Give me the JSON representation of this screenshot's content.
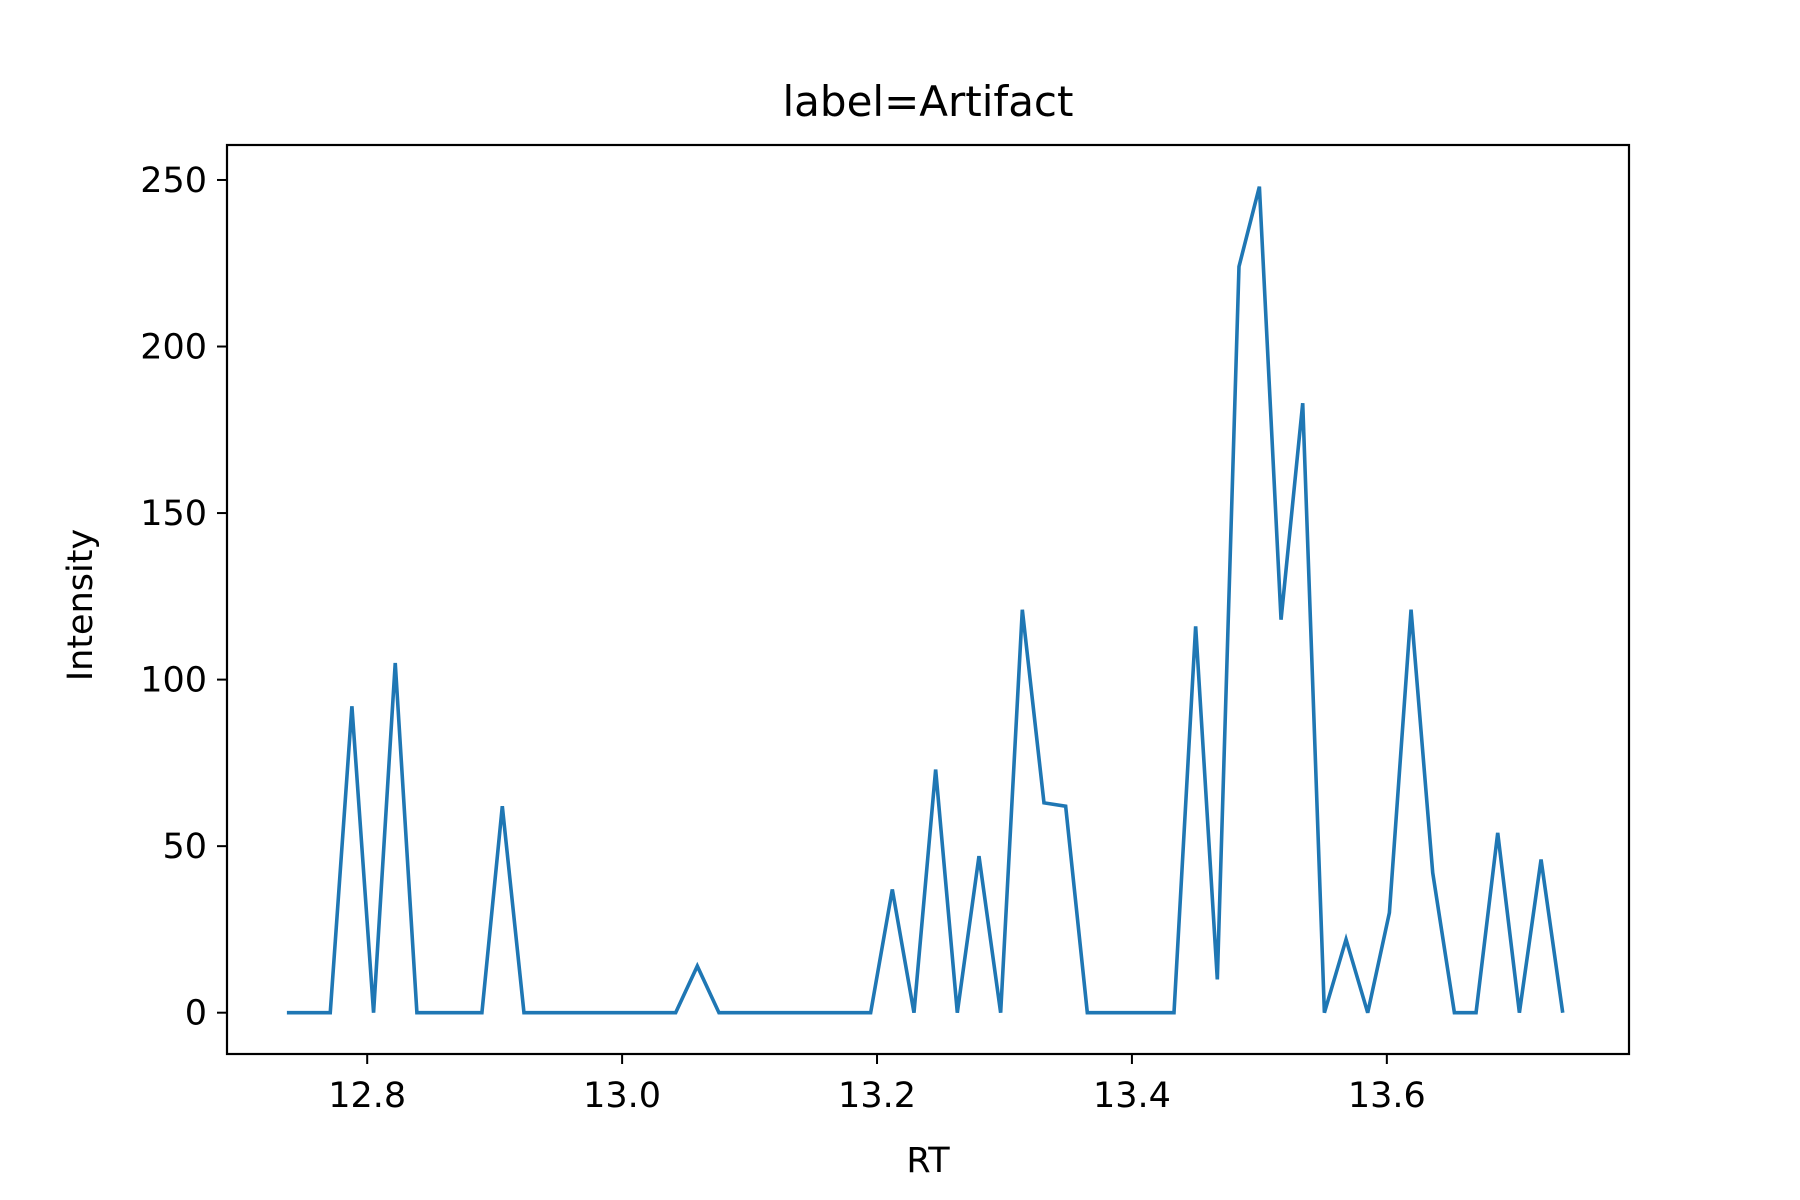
{
  "chart_data": {
    "type": "line",
    "title": "label=Artifact",
    "xlabel": "RT",
    "ylabel": "Intensity",
    "xlim": [
      12.69,
      13.79
    ],
    "ylim": [
      -12.4,
      260.5
    ],
    "xticks": [
      12.8,
      13.0,
      13.2,
      13.4,
      13.6
    ],
    "xtick_labels": [
      "12.8",
      "13.0",
      "13.2",
      "13.4",
      "13.6"
    ],
    "yticks": [
      0,
      50,
      100,
      150,
      200,
      250
    ],
    "ytick_labels": [
      "0",
      "50",
      "100",
      "150",
      "200",
      "250"
    ],
    "grid": false,
    "legend": "none",
    "colors": {
      "series": "#1f77b4"
    },
    "series": [
      {
        "x": [
          12.737,
          12.754,
          12.771,
          12.788,
          12.805,
          12.822,
          12.839,
          12.856,
          12.873,
          12.89,
          12.906,
          12.923,
          12.94,
          12.957,
          12.974,
          12.991,
          13.008,
          13.025,
          13.042,
          13.059,
          13.076,
          13.093,
          13.11,
          13.127,
          13.144,
          13.161,
          13.178,
          13.195,
          13.212,
          13.229,
          13.246,
          13.263,
          13.28,
          13.297,
          13.314,
          13.331,
          13.348,
          13.365,
          13.382,
          13.399,
          13.416,
          13.433,
          13.45,
          13.467,
          13.484,
          13.5,
          13.517,
          13.534,
          13.551,
          13.568,
          13.585,
          13.602,
          13.619,
          13.636,
          13.653,
          13.67,
          13.687,
          13.704,
          13.721,
          13.738
        ],
        "y": [
          0,
          0,
          0,
          92,
          0,
          105,
          0,
          0,
          0,
          0,
          62,
          0,
          0,
          0,
          0,
          0,
          0,
          0,
          0,
          14,
          0,
          0,
          0,
          0,
          0,
          0,
          0,
          0,
          37,
          0,
          73,
          0,
          47,
          0,
          121,
          63,
          62,
          0,
          0,
          0,
          0,
          0,
          116,
          10,
          224,
          248,
          118,
          183,
          0,
          22,
          0,
          30,
          121,
          42,
          0,
          0,
          54,
          0,
          46,
          0
        ]
      }
    ]
  }
}
